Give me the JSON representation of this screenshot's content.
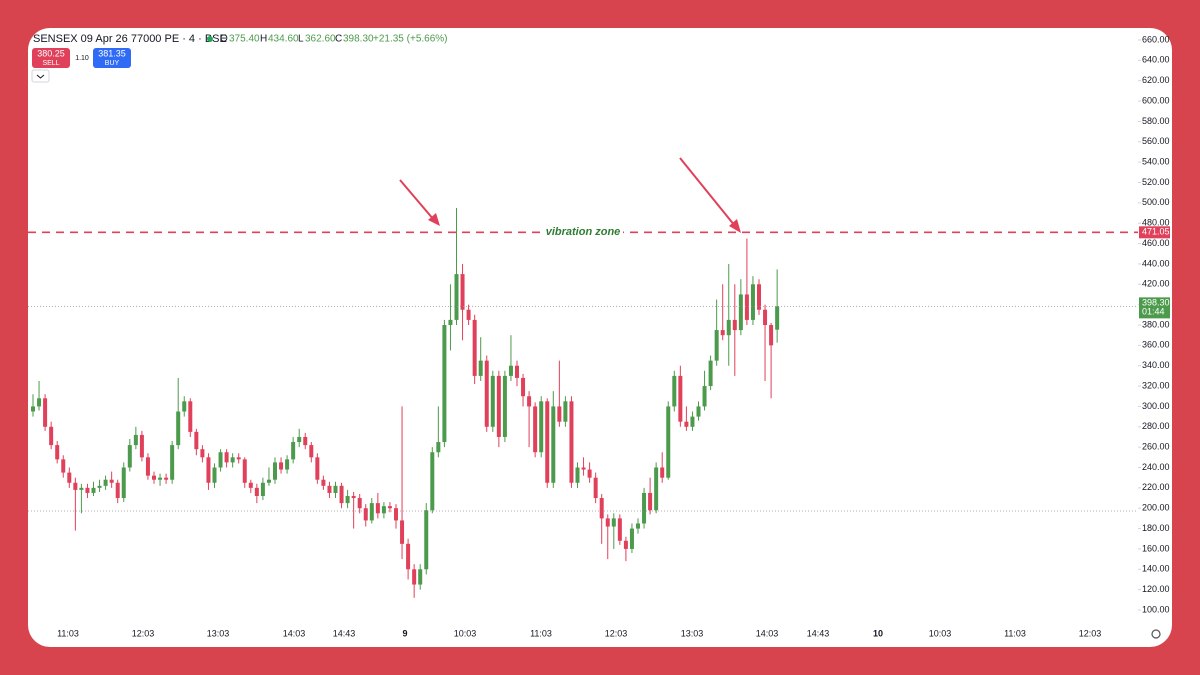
{
  "chart_data": {
    "type": "candlestick",
    "title": "SENSEX 09 Apr 26 77000 PE · 4 · BSE",
    "ohlc": {
      "o_label": "O",
      "open": {
        "value": 375.4,
        "label": "375.40"
      },
      "h_label": "H",
      "high": {
        "value": 434.6,
        "label": "434.60"
      },
      "l_label": "L",
      "low": {
        "value": 362.6,
        "label": "362.60"
      },
      "c_label": "C",
      "close": {
        "value": 398.3,
        "label": "398.30"
      },
      "change": "+21.35 (+5.66%)"
    },
    "trade": {
      "sell_price": "380.25",
      "sell": "SELL",
      "spread": "1.10",
      "buy_price": "381.35",
      "buy": "BUY"
    },
    "up_color": "#4c9a4c",
    "down_color": "#e0405a",
    "candles": [
      [
        295,
        312,
        290,
        300
      ],
      [
        300,
        325,
        296,
        308
      ],
      [
        308,
        312,
        276,
        280
      ],
      [
        280,
        285,
        258,
        262
      ],
      [
        262,
        266,
        244,
        248
      ],
      [
        248,
        252,
        230,
        235
      ],
      [
        235,
        240,
        220,
        225
      ],
      [
        225,
        230,
        178,
        218
      ],
      [
        218,
        224,
        195,
        220
      ],
      [
        220,
        224,
        210,
        215
      ],
      [
        215,
        226,
        212,
        220
      ],
      [
        220,
        228,
        216,
        222
      ],
      [
        222,
        232,
        218,
        228
      ],
      [
        228,
        236,
        220,
        225
      ],
      [
        225,
        228,
        205,
        210
      ],
      [
        210,
        245,
        206,
        240
      ],
      [
        240,
        268,
        236,
        262
      ],
      [
        262,
        280,
        258,
        272
      ],
      [
        272,
        276,
        246,
        250
      ],
      [
        250,
        254,
        228,
        232
      ],
      [
        232,
        236,
        224,
        228
      ],
      [
        228,
        234,
        222,
        230
      ],
      [
        230,
        234,
        224,
        228
      ],
      [
        228,
        266,
        224,
        262
      ],
      [
        262,
        328,
        258,
        295
      ],
      [
        295,
        310,
        290,
        305
      ],
      [
        305,
        308,
        270,
        275
      ],
      [
        275,
        278,
        252,
        258
      ],
      [
        258,
        262,
        245,
        250
      ],
      [
        250,
        254,
        218,
        225
      ],
      [
        225,
        244,
        220,
        240
      ],
      [
        240,
        258,
        236,
        255
      ],
      [
        255,
        258,
        240,
        245
      ],
      [
        245,
        254,
        240,
        250
      ],
      [
        250,
        254,
        244,
        248
      ],
      [
        248,
        250,
        220,
        225
      ],
      [
        225,
        228,
        215,
        220
      ],
      [
        220,
        224,
        205,
        212
      ],
      [
        212,
        230,
        208,
        225
      ],
      [
        225,
        240,
        222,
        228
      ],
      [
        228,
        250,
        224,
        245
      ],
      [
        245,
        250,
        234,
        238
      ],
      [
        238,
        252,
        234,
        248
      ],
      [
        248,
        270,
        244,
        265
      ],
      [
        265,
        278,
        260,
        270
      ],
      [
        270,
        274,
        258,
        262
      ],
      [
        262,
        265,
        245,
        250
      ],
      [
        250,
        254,
        224,
        228
      ],
      [
        228,
        232,
        218,
        222
      ],
      [
        222,
        226,
        210,
        215
      ],
      [
        215,
        226,
        210,
        222
      ],
      [
        222,
        225,
        200,
        205
      ],
      [
        205,
        218,
        200,
        212
      ],
      [
        212,
        216,
        180,
        210
      ],
      [
        210,
        214,
        195,
        200
      ],
      [
        200,
        204,
        182,
        188
      ],
      [
        188,
        210,
        185,
        205
      ],
      [
        205,
        215,
        190,
        195
      ],
      [
        195,
        206,
        190,
        202
      ],
      [
        202,
        206,
        196,
        200
      ],
      [
        200,
        204,
        180,
        188
      ],
      [
        188,
        300,
        150,
        165
      ],
      [
        165,
        170,
        130,
        140
      ],
      [
        140,
        145,
        112,
        125
      ],
      [
        125,
        145,
        120,
        140
      ],
      [
        140,
        205,
        135,
        198
      ],
      [
        198,
        260,
        195,
        255
      ],
      [
        255,
        300,
        250,
        265
      ],
      [
        265,
        385,
        260,
        380
      ],
      [
        380,
        420,
        355,
        385
      ],
      [
        385,
        495,
        380,
        430
      ],
      [
        430,
        440,
        365,
        395
      ],
      [
        395,
        400,
        380,
        385
      ],
      [
        385,
        390,
        322,
        330
      ],
      [
        330,
        368,
        325,
        345
      ],
      [
        345,
        350,
        275,
        280
      ],
      [
        280,
        335,
        275,
        330
      ],
      [
        330,
        335,
        260,
        270
      ],
      [
        270,
        335,
        265,
        330
      ],
      [
        330,
        370,
        325,
        340
      ],
      [
        340,
        345,
        320,
        328
      ],
      [
        328,
        332,
        300,
        310
      ],
      [
        310,
        315,
        260,
        300
      ],
      [
        300,
        304,
        250,
        255
      ],
      [
        255,
        310,
        250,
        305
      ],
      [
        305,
        308,
        220,
        225
      ],
      [
        225,
        315,
        220,
        300
      ],
      [
        300,
        345,
        280,
        285
      ],
      [
        285,
        310,
        280,
        305
      ],
      [
        305,
        310,
        220,
        225
      ],
      [
        225,
        245,
        220,
        240
      ],
      [
        240,
        250,
        232,
        238
      ],
      [
        238,
        245,
        225,
        230
      ],
      [
        230,
        235,
        205,
        210
      ],
      [
        210,
        214,
        165,
        190
      ],
      [
        190,
        194,
        150,
        182
      ],
      [
        182,
        195,
        160,
        190
      ],
      [
        190,
        194,
        164,
        168
      ],
      [
        168,
        172,
        148,
        160
      ],
      [
        160,
        185,
        156,
        180
      ],
      [
        180,
        190,
        175,
        185
      ],
      [
        185,
        220,
        180,
        215
      ],
      [
        215,
        230,
        194,
        198
      ],
      [
        198,
        245,
        195,
        240
      ],
      [
        240,
        255,
        225,
        230
      ],
      [
        230,
        305,
        228,
        300
      ],
      [
        300,
        335,
        295,
        330
      ],
      [
        330,
        340,
        280,
        285
      ],
      [
        285,
        300,
        276,
        280
      ],
      [
        280,
        295,
        276,
        290
      ],
      [
        290,
        305,
        286,
        300
      ],
      [
        300,
        335,
        296,
        320
      ],
      [
        320,
        350,
        316,
        345
      ],
      [
        345,
        405,
        340,
        375
      ],
      [
        375,
        420,
        365,
        370
      ],
      [
        370,
        440,
        340,
        385
      ],
      [
        385,
        420,
        330,
        375
      ],
      [
        375,
        425,
        370,
        410
      ],
      [
        410,
        465,
        380,
        385
      ],
      [
        385,
        428,
        380,
        420
      ],
      [
        420,
        425,
        390,
        395
      ],
      [
        395,
        400,
        325,
        380
      ],
      [
        380,
        382,
        308,
        360
      ],
      [
        375.4,
        434.6,
        362.6,
        398.3
      ]
    ],
    "ylim": [
      100,
      660
    ],
    "yticks": [
      {
        "value": 100,
        "label": "100.00"
      },
      {
        "value": 120,
        "label": "120.00"
      },
      {
        "value": 140,
        "label": "140.00"
      },
      {
        "value": 160,
        "label": "160.00"
      },
      {
        "value": 180,
        "label": "180.00"
      },
      {
        "value": 200,
        "label": "200.00"
      },
      {
        "value": 220,
        "label": "220.00"
      },
      {
        "value": 240,
        "label": "240.00"
      },
      {
        "value": 260,
        "label": "260.00"
      },
      {
        "value": 280,
        "label": "280.00"
      },
      {
        "value": 300,
        "label": "300.00"
      },
      {
        "value": 320,
        "label": "320.00"
      },
      {
        "value": 340,
        "label": "340.00"
      },
      {
        "value": 360,
        "label": "360.00"
      },
      {
        "value": 380,
        "label": "380.00"
      },
      {
        "value": 400,
        "label": "400.00"
      },
      {
        "value": 420,
        "label": "420.00"
      },
      {
        "value": 440,
        "label": "440.00"
      },
      {
        "value": 460,
        "label": "460.00"
      },
      {
        "value": 480,
        "label": "480.00"
      },
      {
        "value": 500,
        "label": "500.00"
      },
      {
        "value": 520,
        "label": "520.00"
      },
      {
        "value": 540,
        "label": "540.00"
      },
      {
        "value": 560,
        "label": "560.00"
      },
      {
        "value": 580,
        "label": "580.00"
      },
      {
        "value": 600,
        "label": "600.00"
      },
      {
        "value": 620,
        "label": "620.00"
      },
      {
        "value": 640,
        "label": "640.00"
      },
      {
        "value": 660,
        "label": "660.00"
      }
    ],
    "x_labels": [
      "11:03",
      "12:03",
      "13:03",
      "14:03",
      "14:43",
      "9",
      "10:03",
      "11:03",
      "12:03",
      "13:03",
      "14:03",
      "14:43",
      "10",
      "10:03",
      "11:03",
      "12:03"
    ],
    "zone_line": {
      "value": 471.05,
      "label": "471.05",
      "text": "vibration zone",
      "color": "#e0405a"
    },
    "price_line": {
      "value": 398.3,
      "label": "398.30",
      "countdown": "01:44"
    },
    "reference_line": 197.3
  }
}
